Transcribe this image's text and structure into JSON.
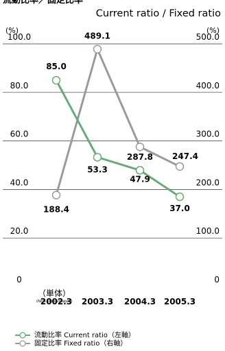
{
  "title_jp": "流動比率／固定比率",
  "title_en": "Current ratio / Fixed ratio",
  "left_unit": "(%)",
  "right_unit": "(%)",
  "x_sublabel": "（単体）",
  "x_subnote": "(Non-consolidated)",
  "colors": {
    "current": "#6aaa78",
    "fixed": "#9a9a9a",
    "title_en": "#3a8a45",
    "grid": "#333333"
  },
  "chart_data": {
    "type": "line",
    "categories": [
      "2002.3",
      "2003.3",
      "2004.3",
      "2005.3"
    ],
    "left_axis": {
      "ylim": [
        0,
        100
      ],
      "ticks": [
        "0",
        "20.0",
        "40.0",
        "60.0",
        "80.0",
        "100.0"
      ]
    },
    "right_axis": {
      "ylim": [
        0,
        500
      ],
      "ticks": [
        "0",
        "100.0",
        "200.0",
        "300.0",
        "400.0",
        "500.0"
      ]
    },
    "grid": true,
    "series": [
      {
        "name": "流動比率 Current ratio（左軸）",
        "axis": "left",
        "values": [
          85.0,
          53.3,
          47.9,
          37.0
        ],
        "labels": [
          "85.0",
          "53.3",
          "47.9",
          "37.0"
        ]
      },
      {
        "name": "固定比率 Fixed ratio（右軸）",
        "axis": "right",
        "values": [
          188.4,
          489.1,
          287.8,
          247.4
        ],
        "labels": [
          "188.4",
          "489.1",
          "287.8",
          "247.4"
        ]
      }
    ]
  }
}
